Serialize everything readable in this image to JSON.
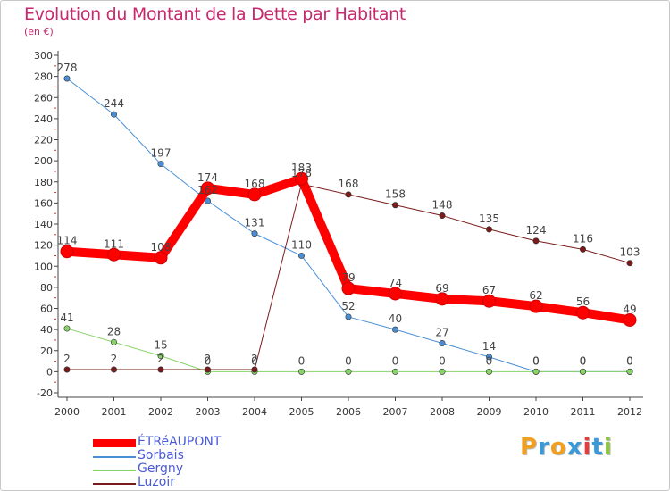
{
  "chart_data": {
    "type": "line",
    "title": "Evolution du Montant de la Dette par Habitant",
    "subtitle": "(en €)",
    "categories": [
      "2000",
      "2001",
      "2002",
      "2003",
      "2004",
      "2005",
      "2006",
      "2007",
      "2008",
      "2009",
      "2010",
      "2011",
      "2012"
    ],
    "ylim": [
      -20,
      300
    ],
    "yticks": [
      -20,
      0,
      20,
      40,
      60,
      80,
      100,
      120,
      140,
      160,
      180,
      200,
      220,
      240,
      260,
      280,
      300
    ],
    "grid": false,
    "series": [
      {
        "name": "ÉTRéAUPONT",
        "color": "#ff0000",
        "emphasis": true,
        "values": [
          114,
          111,
          108,
          174,
          168,
          183,
          79,
          74,
          69,
          67,
          62,
          56,
          49
        ],
        "labels": [
          "114",
          "111",
          "108",
          "174",
          "168",
          "183",
          "79",
          "74",
          "69",
          "67",
          "62",
          "56",
          "49"
        ]
      },
      {
        "name": "Sorbais",
        "color": "#4a8fd6",
        "values": [
          278,
          244,
          197,
          162,
          131,
          110,
          52,
          40,
          27,
          14,
          0,
          0,
          0
        ],
        "labels": [
          "278",
          "244",
          "197",
          "162",
          "131",
          "110",
          "52",
          "40",
          "27",
          "14",
          "0",
          "0",
          "0"
        ]
      },
      {
        "name": "Gergny",
        "color": "#88d468",
        "values": [
          41,
          28,
          15,
          0,
          0,
          0,
          0,
          0,
          0,
          0,
          0,
          0,
          0
        ],
        "labels": [
          "41",
          "28",
          "15",
          "0",
          "0",
          "0",
          "0",
          "0",
          "0",
          "0",
          "0",
          "0",
          "0"
        ]
      },
      {
        "name": "Luzoir",
        "color": "#7a1a1a",
        "values": [
          2,
          2,
          2,
          2,
          2,
          178,
          168,
          158,
          148,
          135,
          124,
          116,
          103
        ],
        "labels": [
          "2",
          "2",
          "2",
          "2",
          "2",
          "178",
          "168",
          "158",
          "148",
          "135",
          "124",
          "116",
          "103"
        ]
      }
    ],
    "legend_position": "bottom-left"
  },
  "brand": {
    "text": "Proxiti",
    "letters": [
      "P",
      "r",
      "o",
      "x",
      "i",
      "t",
      "i"
    ],
    "colors": [
      "#f0a020",
      "#3a9ad9",
      "#f0a020",
      "#3a9ad9",
      "#e83c3c",
      "#3a9ad9",
      "#8cc63f"
    ]
  }
}
